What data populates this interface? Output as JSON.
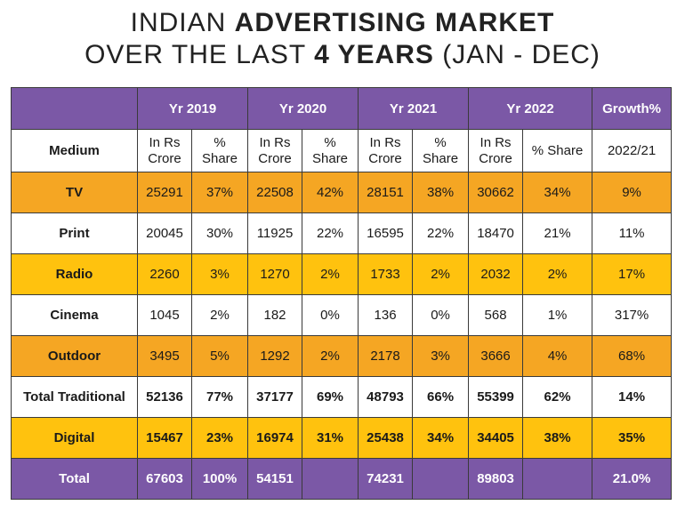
{
  "title": {
    "line1_pre": "INDIAN ",
    "line1_bold": "ADVERTISING MARKET",
    "line2_pre": "OVER THE LAST ",
    "line2_bold": "4 YEARS",
    "line2_post": " (JAN - DEC)"
  },
  "header": {
    "years": [
      "Yr 2019",
      "Yr 2020",
      "Yr 2021",
      "Yr 2022"
    ],
    "growth": "Growth%"
  },
  "subheader": {
    "medium": "Medium",
    "crore_l1": "In Rs",
    "crore_l2": "Crore",
    "share_l1": "%",
    "share_l2": "Share",
    "share_2022": "% Share",
    "growth_period": "2022/21"
  },
  "rows": [
    {
      "label": "TV",
      "cells": [
        "25291",
        "37%",
        "22508",
        "42%",
        "28151",
        "38%",
        "30662",
        "34%",
        "9%"
      ]
    },
    {
      "label": "Print",
      "cells": [
        "20045",
        "30%",
        "11925",
        "22%",
        "16595",
        "22%",
        "18470",
        "21%",
        "11%"
      ]
    },
    {
      "label": "Radio",
      "cells": [
        "2260",
        "3%",
        "1270",
        "2%",
        "1733",
        "2%",
        "2032",
        "2%",
        "17%"
      ]
    },
    {
      "label": "Cinema",
      "cells": [
        "1045",
        "2%",
        "182",
        "0%",
        "136",
        "0%",
        "568",
        "1%",
        "317%"
      ]
    },
    {
      "label": "Outdoor",
      "cells": [
        "3495",
        "5%",
        "1292",
        "2%",
        "2178",
        "3%",
        "3666",
        "4%",
        "68%"
      ]
    },
    {
      "label": "Total Traditional",
      "cells": [
        "52136",
        "77%",
        "37177",
        "69%",
        "48793",
        "66%",
        "55399",
        "62%",
        "14%"
      ]
    },
    {
      "label": "Digital",
      "cells": [
        "15467",
        "23%",
        "16974",
        "31%",
        "25438",
        "34%",
        "34405",
        "38%",
        "35%"
      ]
    },
    {
      "label": "Total",
      "cells": [
        "67603",
        "100%",
        "54151",
        "",
        "74231",
        "",
        "89803",
        "",
        "21.0%"
      ]
    }
  ],
  "colors": {
    "purple": "#7b58a6",
    "orange": "#f5a623",
    "yellow": "#ffc20e",
    "white": "#ffffff"
  },
  "chart_data": {
    "type": "table",
    "title": "INDIAN ADVERTISING MARKET OVER THE LAST 4 YEARS (JAN - DEC)",
    "columns": [
      "Medium",
      "Yr 2019 In Rs Crore",
      "Yr 2019 % Share",
      "Yr 2020 In Rs Crore",
      "Yr 2020 % Share",
      "Yr 2021 In Rs Crore",
      "Yr 2021 % Share",
      "Yr 2022 In Rs Crore",
      "Yr 2022 % Share",
      "Growth% 2022/21"
    ],
    "rows": [
      [
        "TV",
        25291,
        "37%",
        22508,
        "42%",
        28151,
        "38%",
        30662,
        "34%",
        "9%"
      ],
      [
        "Print",
        20045,
        "30%",
        11925,
        "22%",
        16595,
        "22%",
        18470,
        "21%",
        "11%"
      ],
      [
        "Radio",
        2260,
        "3%",
        1270,
        "2%",
        1733,
        "2%",
        2032,
        "2%",
        "17%"
      ],
      [
        "Cinema",
        1045,
        "2%",
        182,
        "0%",
        136,
        "0%",
        568,
        "1%",
        "317%"
      ],
      [
        "Outdoor",
        3495,
        "5%",
        1292,
        "2%",
        2178,
        "3%",
        3666,
        "4%",
        "68%"
      ],
      [
        "Total Traditional",
        52136,
        "77%",
        37177,
        "69%",
        48793,
        "66%",
        55399,
        "62%",
        "14%"
      ],
      [
        "Digital",
        15467,
        "23%",
        16974,
        "31%",
        25438,
        "34%",
        34405,
        "38%",
        "35%"
      ],
      [
        "Total",
        67603,
        "100%",
        54151,
        "",
        74231,
        "",
        89803,
        "",
        "21.0%"
      ]
    ]
  }
}
